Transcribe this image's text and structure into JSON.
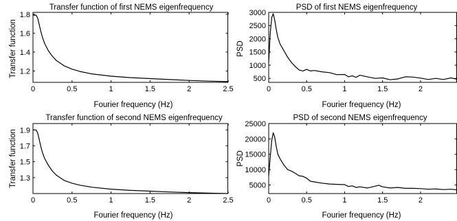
{
  "chart_data": [
    {
      "type": "line",
      "title": "Transfer function of first NEMS eigenfrequency",
      "xlabel": "Fourier frequency (Hz)",
      "ylabel": "Transfer function",
      "xlim": [
        0,
        2.5
      ],
      "ylim": [
        1.08,
        1.82
      ],
      "xticks": [
        0,
        0.5,
        1,
        1.5,
        2,
        2.5
      ],
      "xtick_labels": [
        "0",
        "0.5",
        "1",
        "1.5",
        "2",
        "2.5"
      ],
      "yticks": [
        1.2,
        1.4,
        1.6,
        1.8
      ],
      "ytick_labels": [
        "1.2",
        "1.4",
        "1.6",
        "1.8"
      ],
      "grid": false,
      "series": [
        {
          "x": [
            0,
            0.04,
            0.06,
            0.08,
            0.1,
            0.12,
            0.15,
            0.2,
            0.25,
            0.3,
            0.4,
            0.5,
            0.6,
            0.75,
            1.0,
            1.25,
            1.5,
            1.75,
            2.0,
            2.25,
            2.5
          ],
          "y": [
            1.79,
            1.79,
            1.76,
            1.69,
            1.62,
            1.56,
            1.49,
            1.41,
            1.355,
            1.31,
            1.255,
            1.22,
            1.195,
            1.17,
            1.145,
            1.13,
            1.12,
            1.11,
            1.1,
            1.093,
            1.088
          ]
        }
      ]
    },
    {
      "type": "line",
      "title": "PSD of first NEMS eigenfrequency",
      "xlabel": "Fourier frequency (Hz)",
      "ylabel": "PSD",
      "xlim": [
        0,
        2.48
      ],
      "ylim": [
        350,
        3000
      ],
      "xticks": [
        0,
        0.5,
        1,
        1.5,
        2
      ],
      "xtick_labels": [
        "0",
        "0.5",
        "1",
        "1.5",
        "2"
      ],
      "yticks": [
        500,
        1000,
        1500,
        2000,
        2500,
        3000
      ],
      "ytick_labels": [
        "500",
        "1000",
        "1500",
        "2000",
        "2500",
        "3000"
      ],
      "grid": false,
      "series": [
        {
          "x": [
            0,
            0.02,
            0.04,
            0.06,
            0.08,
            0.1,
            0.12,
            0.15,
            0.2,
            0.25,
            0.3,
            0.35,
            0.4,
            0.45,
            0.5,
            0.55,
            0.6,
            0.7,
            0.8,
            0.9,
            1.0,
            1.05,
            1.1,
            1.15,
            1.2,
            1.3,
            1.4,
            1.5,
            1.6,
            1.7,
            1.8,
            1.9,
            2.0,
            2.1,
            2.2,
            2.3,
            2.4,
            2.48
          ],
          "y": [
            1100,
            2200,
            2800,
            2950,
            2700,
            2350,
            2050,
            1800,
            1550,
            1300,
            1100,
            950,
            820,
            780,
            840,
            780,
            800,
            750,
            720,
            640,
            650,
            560,
            600,
            540,
            620,
            560,
            500,
            520,
            450,
            480,
            560,
            550,
            510,
            460,
            500,
            460,
            520,
            470
          ]
        }
      ]
    },
    {
      "type": "line",
      "title": "Transfer function of second NEMS eigenfrequency",
      "xlabel": "Fourier frequency (Hz)",
      "ylabel": "Transfer function",
      "xlim": [
        0,
        2.5
      ],
      "ylim": [
        1.1,
        1.98
      ],
      "xticks": [
        0,
        0.5,
        1,
        1.5,
        2,
        2.5
      ],
      "xtick_labels": [
        "0",
        "0.5",
        "1",
        "1.5",
        "2",
        "2.5"
      ],
      "yticks": [
        1.3,
        1.5,
        1.7,
        1.9
      ],
      "ytick_labels": [
        "1.3",
        "1.5",
        "1.7",
        "1.9"
      ],
      "grid": false,
      "series": [
        {
          "x": [
            0,
            0.04,
            0.06,
            0.08,
            0.1,
            0.12,
            0.15,
            0.2,
            0.25,
            0.3,
            0.4,
            0.5,
            0.6,
            0.75,
            1.0,
            1.25,
            1.5,
            1.75,
            2.0,
            2.25,
            2.5
          ],
          "y": [
            1.9,
            1.9,
            1.86,
            1.78,
            1.69,
            1.62,
            1.54,
            1.45,
            1.38,
            1.33,
            1.265,
            1.23,
            1.205,
            1.18,
            1.155,
            1.14,
            1.13,
            1.12,
            1.112,
            1.105,
            1.1
          ]
        }
      ]
    },
    {
      "type": "line",
      "title": "PSD of second NEMS eigenfrequency",
      "xlabel": "Fourier frequency (Hz)",
      "ylabel": "PSD",
      "xlim": [
        0,
        2.48
      ],
      "ylim": [
        2200,
        25000
      ],
      "xticks": [
        0,
        0.5,
        1,
        1.5,
        2
      ],
      "xtick_labels": [
        "0",
        "0.5",
        "1",
        "1.5",
        "2"
      ],
      "yticks": [
        5000,
        10000,
        15000,
        20000,
        25000
      ],
      "ytick_labels": [
        "5000",
        "10000",
        "15000",
        "20000",
        "25000"
      ],
      "grid": false,
      "series": [
        {
          "x": [
            0,
            0.02,
            0.04,
            0.06,
            0.08,
            0.1,
            0.12,
            0.15,
            0.2,
            0.25,
            0.3,
            0.35,
            0.4,
            0.45,
            0.5,
            0.55,
            0.6,
            0.7,
            0.8,
            0.9,
            1.0,
            1.05,
            1.1,
            1.15,
            1.2,
            1.3,
            1.4,
            1.45,
            1.5,
            1.6,
            1.7,
            1.8,
            1.9,
            2.0,
            2.1,
            2.2,
            2.3,
            2.4,
            2.48
          ],
          "y": [
            8000,
            14000,
            19500,
            22000,
            20500,
            17500,
            15000,
            13500,
            11500,
            10000,
            9500,
            8800,
            8000,
            7800,
            7200,
            6200,
            6000,
            5600,
            5300,
            5200,
            5100,
            4500,
            4700,
            4200,
            4400,
            4000,
            4600,
            4900,
            4400,
            4000,
            4200,
            3900,
            3900,
            3800,
            3600,
            3700,
            3500,
            3600,
            3400
          ]
        }
      ]
    }
  ]
}
